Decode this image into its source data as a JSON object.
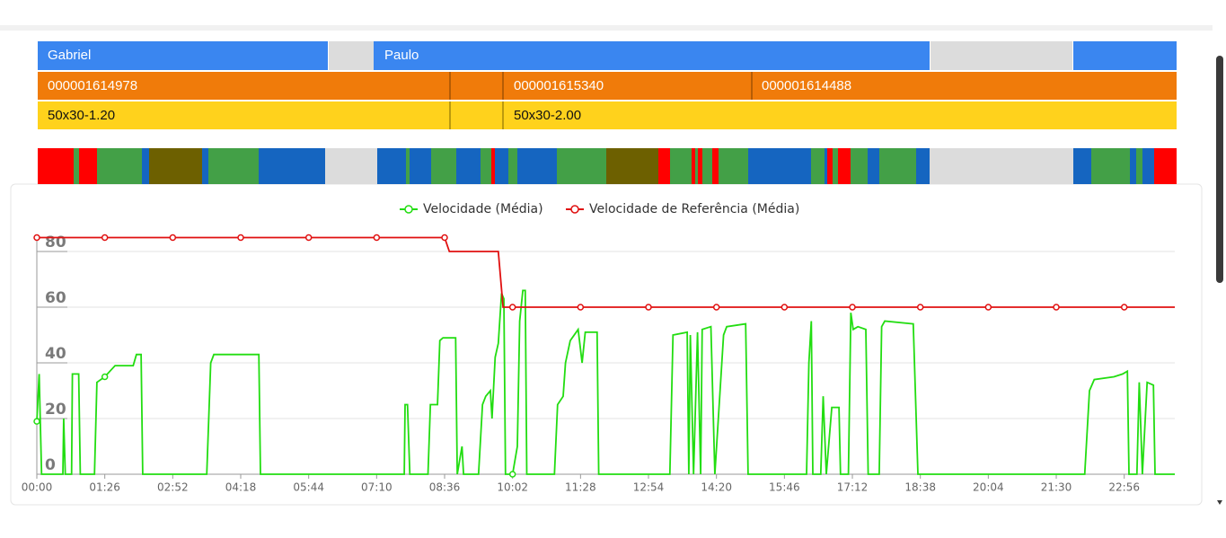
{
  "timeline": {
    "operators": [
      "Gabriel",
      "Paulo"
    ],
    "orders": [
      "000001614978",
      "000001615340",
      "000001614488"
    ],
    "products": [
      "50x30-1.20",
      "50x30-2.00"
    ]
  },
  "chart_data": {
    "type": "line",
    "xlim": [
      0,
      1440
    ],
    "xticks": [
      {
        "value": 0,
        "label": "00:00"
      },
      {
        "value": 86,
        "label": "01:26"
      },
      {
        "value": 172,
        "label": "02:52"
      },
      {
        "value": 258,
        "label": "04:18"
      },
      {
        "value": 344,
        "label": "05:44"
      },
      {
        "value": 430,
        "label": "07:10"
      },
      {
        "value": 516,
        "label": "08:36"
      },
      {
        "value": 602,
        "label": "10:02"
      },
      {
        "value": 688,
        "label": "11:28"
      },
      {
        "value": 774,
        "label": "12:54"
      },
      {
        "value": 860,
        "label": "14:20"
      },
      {
        "value": 946,
        "label": "15:46"
      },
      {
        "value": 1032,
        "label": "17:12"
      },
      {
        "value": 1118,
        "label": "18:38"
      },
      {
        "value": 1204,
        "label": "20:04"
      },
      {
        "value": 1290,
        "label": "21:30"
      },
      {
        "value": 1376,
        "label": "22:56"
      }
    ],
    "ylim": [
      0,
      85
    ],
    "yticks": [
      0,
      20,
      40,
      60,
      80
    ],
    "grid": true,
    "legend": "top",
    "series": [
      {
        "name": "Velocidade (Média)",
        "color": "#22dd11",
        "x": [
          0,
          3,
          6,
          33,
          34,
          36,
          44,
          45,
          53,
          55,
          73,
          76,
          86,
          99,
          122,
          126,
          132,
          134,
          215,
          220,
          224,
          281,
          283,
          465,
          466,
          469,
          472,
          495,
          498,
          507,
          510,
          514,
          530,
          532,
          538,
          540,
          559,
          564,
          568,
          574,
          576,
          580,
          584,
          588,
          591,
          593,
          602,
          608,
          611,
          615,
          618,
          620,
          655,
          659,
          666,
          669,
          675,
          685,
          690,
          694,
          709,
          711,
          801,
          805,
          823,
          825,
          827,
          831,
          836,
          840,
          842,
          853,
          858,
          869,
          873,
          897,
          900,
          974,
          977,
          980,
          982,
          992,
          995,
          999,
          1006,
          1015,
          1017,
          1027,
          1030,
          1033,
          1039,
          1049,
          1052,
          1066,
          1069,
          1073,
          1109,
          1115,
          1326,
          1332,
          1338,
          1363,
          1374,
          1380,
          1382,
          1392,
          1395,
          1399,
          1405,
          1413,
          1415,
          1440
        ],
        "values": [
          19,
          36,
          0,
          0,
          20,
          0,
          0,
          36,
          36,
          0,
          0,
          33,
          35,
          39,
          39,
          43,
          43,
          0,
          0,
          40,
          43,
          43,
          0,
          0,
          25,
          25,
          0,
          0,
          25,
          25,
          48,
          49,
          49,
          0,
          10,
          0,
          0,
          25,
          28,
          30,
          20,
          42,
          47,
          65,
          63,
          0,
          0,
          10,
          55,
          66,
          66,
          0,
          0,
          25,
          28,
          40,
          48,
          52,
          40,
          51,
          51,
          0,
          0,
          50,
          51,
          0,
          50,
          0,
          51,
          0,
          52,
          53,
          0,
          50,
          53,
          54,
          0,
          0,
          40,
          55,
          0,
          0,
          28,
          0,
          24,
          24,
          0,
          0,
          58,
          52,
          53,
          52,
          0,
          0,
          53,
          55,
          54,
          0,
          0,
          30,
          34,
          35,
          36,
          37,
          0,
          0,
          33,
          0,
          33,
          32,
          0,
          0
        ]
      },
      {
        "name": "Velocidade de Referência (Média)",
        "color": "#e01010",
        "x": [
          0,
          86,
          172,
          258,
          344,
          430,
          516,
          522,
          584,
          590,
          602,
          688,
          774,
          860,
          946,
          1032,
          1118,
          1204,
          1290,
          1376,
          1440
        ],
        "values": [
          85,
          85,
          85,
          85,
          85,
          85,
          85,
          80,
          80,
          60,
          60,
          60,
          60,
          60,
          60,
          60,
          60,
          60,
          60,
          60,
          60
        ]
      }
    ]
  }
}
